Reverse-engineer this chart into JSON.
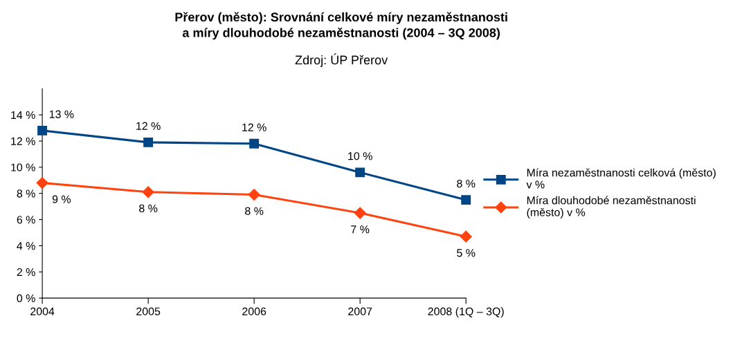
{
  "chart_data": {
    "type": "line",
    "title": "Přerov (město): Srovnání celkové míry nezaměstnanosti\na míry dlouhodobé nezaměstnanosti (2004 – 3Q 2008)",
    "subtitle": "Zdroj: ÚP Přerov",
    "categories": [
      "2004",
      "2005",
      "2006",
      "2007",
      "2008 (1Q – 3Q)"
    ],
    "series": [
      {
        "name": "Míra nezaměstnanosti celková (město) v %",
        "color": "#004586",
        "marker": "square",
        "values": [
          12.8,
          11.9,
          11.8,
          9.6,
          7.5
        ],
        "value_labels": [
          "13 %",
          "12 %",
          "12 %",
          "10 %",
          "8 %"
        ]
      },
      {
        "name": "Míra dlouhodobé nezaměstnanosti (město) v %",
        "color": "#ff420e",
        "marker": "diamond",
        "values": [
          8.8,
          8.1,
          7.9,
          6.5,
          4.7
        ],
        "value_labels": [
          "9 %",
          "8 %",
          "8 %",
          "7 %",
          "5 %"
        ]
      }
    ],
    "ylim": [
      0,
      16
    ],
    "yticks": [
      {
        "value": 0,
        "label": "0 %"
      },
      {
        "value": 2,
        "label": "2 %"
      },
      {
        "value": 4,
        "label": "4 %"
      },
      {
        "value": 6,
        "label": "6 %"
      },
      {
        "value": 8,
        "label": "8 %"
      },
      {
        "value": 10,
        "label": "10 %"
      },
      {
        "value": 12,
        "label": "12 %"
      },
      {
        "value": 14,
        "label": "14 %"
      }
    ],
    "grid": false,
    "legend": "right",
    "line_style": "solid"
  }
}
